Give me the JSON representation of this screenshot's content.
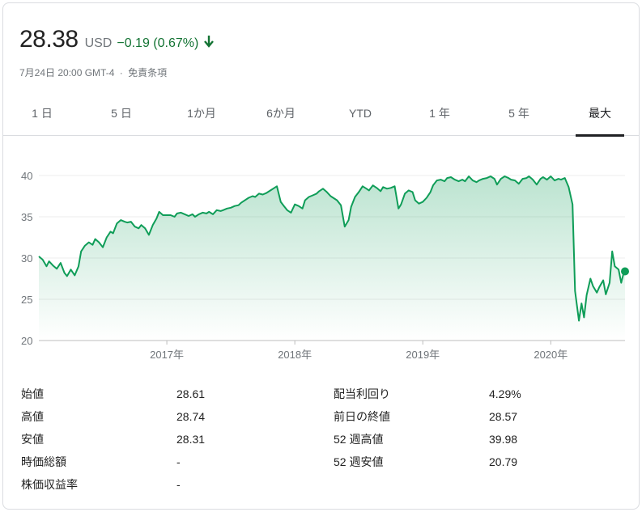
{
  "quote": {
    "price": "28.38",
    "currency": "USD",
    "change": "−0.19 (0.67%)",
    "change_color": "#137333",
    "direction_icon": "arrow-down-icon",
    "date": "7月24日 20:00 GMT-4",
    "separator": "·",
    "disclaimer": "免責条項"
  },
  "tabs": [
    {
      "label": "1 日"
    },
    {
      "label": "5 日"
    },
    {
      "label": "1か月"
    },
    {
      "label": "6か月"
    },
    {
      "label": "YTD"
    },
    {
      "label": "1 年"
    },
    {
      "label": "5 年"
    },
    {
      "label": "最大",
      "active": true
    }
  ],
  "chart_data": {
    "type": "area",
    "line_color": "#0f9d58",
    "ylim": [
      20,
      40
    ],
    "yticks": [
      "40",
      "35",
      "30",
      "25",
      "20"
    ],
    "xticks": [
      "2017年",
      "2018年",
      "2019年",
      "2020年"
    ],
    "grid": true,
    "x_start": 2016.0,
    "x_end": 2020.58,
    "series": [
      {
        "points": [
          [
            2016.0,
            30.2
          ],
          [
            2016.03,
            29.8
          ],
          [
            2016.06,
            29.0
          ],
          [
            2016.08,
            29.6
          ],
          [
            2016.11,
            29.1
          ],
          [
            2016.14,
            28.7
          ],
          [
            2016.17,
            29.4
          ],
          [
            2016.2,
            28.2
          ],
          [
            2016.22,
            27.8
          ],
          [
            2016.25,
            28.6
          ],
          [
            2016.28,
            27.9
          ],
          [
            2016.31,
            29.0
          ],
          [
            2016.33,
            30.8
          ],
          [
            2016.36,
            31.5
          ],
          [
            2016.39,
            31.9
          ],
          [
            2016.42,
            31.6
          ],
          [
            2016.44,
            32.3
          ],
          [
            2016.47,
            31.9
          ],
          [
            2016.5,
            31.3
          ],
          [
            2016.53,
            32.5
          ],
          [
            2016.56,
            33.2
          ],
          [
            2016.58,
            33.0
          ],
          [
            2016.61,
            34.2
          ],
          [
            2016.64,
            34.6
          ],
          [
            2016.67,
            34.4
          ],
          [
            2016.69,
            34.3
          ],
          [
            2016.72,
            34.4
          ],
          [
            2016.75,
            33.8
          ],
          [
            2016.78,
            33.6
          ],
          [
            2016.8,
            34.0
          ],
          [
            2016.83,
            33.6
          ],
          [
            2016.86,
            32.8
          ],
          [
            2016.89,
            34.0
          ],
          [
            2016.92,
            34.8
          ],
          [
            2016.94,
            35.6
          ],
          [
            2016.97,
            35.2
          ],
          [
            2017.0,
            35.2
          ],
          [
            2017.03,
            35.2
          ],
          [
            2017.06,
            35.0
          ],
          [
            2017.08,
            35.4
          ],
          [
            2017.11,
            35.5
          ],
          [
            2017.14,
            35.3
          ],
          [
            2017.17,
            35.1
          ],
          [
            2017.2,
            35.3
          ],
          [
            2017.22,
            35.0
          ],
          [
            2017.25,
            35.3
          ],
          [
            2017.28,
            35.5
          ],
          [
            2017.31,
            35.4
          ],
          [
            2017.33,
            35.6
          ],
          [
            2017.36,
            35.3
          ],
          [
            2017.39,
            35.8
          ],
          [
            2017.42,
            35.7
          ],
          [
            2017.44,
            35.8
          ],
          [
            2017.47,
            36.0
          ],
          [
            2017.5,
            36.1
          ],
          [
            2017.53,
            36.3
          ],
          [
            2017.56,
            36.4
          ],
          [
            2017.58,
            36.7
          ],
          [
            2017.61,
            37.0
          ],
          [
            2017.64,
            37.3
          ],
          [
            2017.67,
            37.5
          ],
          [
            2017.69,
            37.4
          ],
          [
            2017.72,
            37.8
          ],
          [
            2017.75,
            37.7
          ],
          [
            2017.78,
            37.9
          ],
          [
            2017.81,
            38.2
          ],
          [
            2017.83,
            38.4
          ],
          [
            2017.86,
            38.7
          ],
          [
            2017.89,
            36.8
          ],
          [
            2017.92,
            36.2
          ],
          [
            2017.94,
            35.8
          ],
          [
            2017.97,
            35.5
          ],
          [
            2018.0,
            36.5
          ],
          [
            2018.03,
            36.3
          ],
          [
            2018.06,
            36.0
          ],
          [
            2018.08,
            37.0
          ],
          [
            2018.11,
            37.4
          ],
          [
            2018.14,
            37.6
          ],
          [
            2018.17,
            37.8
          ],
          [
            2018.19,
            38.1
          ],
          [
            2018.22,
            38.4
          ],
          [
            2018.25,
            38.0
          ],
          [
            2018.28,
            37.5
          ],
          [
            2018.31,
            37.2
          ],
          [
            2018.33,
            37.0
          ],
          [
            2018.36,
            36.4
          ],
          [
            2018.39,
            33.8
          ],
          [
            2018.42,
            34.6
          ],
          [
            2018.44,
            36.2
          ],
          [
            2018.47,
            37.4
          ],
          [
            2018.5,
            38.0
          ],
          [
            2018.53,
            38.7
          ],
          [
            2018.56,
            38.4
          ],
          [
            2018.58,
            38.2
          ],
          [
            2018.61,
            38.8
          ],
          [
            2018.64,
            38.5
          ],
          [
            2018.67,
            38.1
          ],
          [
            2018.69,
            38.6
          ],
          [
            2018.72,
            38.4
          ],
          [
            2018.75,
            38.5
          ],
          [
            2018.78,
            38.7
          ],
          [
            2018.81,
            36.0
          ],
          [
            2018.83,
            36.5
          ],
          [
            2018.86,
            37.8
          ],
          [
            2018.89,
            38.2
          ],
          [
            2018.92,
            38.0
          ],
          [
            2018.94,
            37.0
          ],
          [
            2018.97,
            36.6
          ],
          [
            2019.0,
            36.8
          ],
          [
            2019.03,
            37.3
          ],
          [
            2019.06,
            38.0
          ],
          [
            2019.08,
            38.8
          ],
          [
            2019.11,
            39.4
          ],
          [
            2019.14,
            39.5
          ],
          [
            2019.17,
            39.3
          ],
          [
            2019.19,
            39.7
          ],
          [
            2019.22,
            39.8
          ],
          [
            2019.25,
            39.5
          ],
          [
            2019.28,
            39.3
          ],
          [
            2019.31,
            39.5
          ],
          [
            2019.33,
            39.3
          ],
          [
            2019.36,
            39.9
          ],
          [
            2019.39,
            39.4
          ],
          [
            2019.42,
            39.2
          ],
          [
            2019.44,
            39.4
          ],
          [
            2019.47,
            39.6
          ],
          [
            2019.5,
            39.7
          ],
          [
            2019.53,
            39.9
          ],
          [
            2019.56,
            39.6
          ],
          [
            2019.58,
            38.9
          ],
          [
            2019.61,
            39.6
          ],
          [
            2019.64,
            39.9
          ],
          [
            2019.67,
            39.7
          ],
          [
            2019.69,
            39.5
          ],
          [
            2019.72,
            39.4
          ],
          [
            2019.75,
            39.0
          ],
          [
            2019.78,
            39.6
          ],
          [
            2019.81,
            39.7
          ],
          [
            2019.83,
            39.9
          ],
          [
            2019.86,
            39.5
          ],
          [
            2019.89,
            38.9
          ],
          [
            2019.92,
            39.6
          ],
          [
            2019.94,
            39.8
          ],
          [
            2019.97,
            39.5
          ],
          [
            2020.0,
            39.9
          ],
          [
            2020.03,
            39.4
          ],
          [
            2020.06,
            39.6
          ],
          [
            2020.08,
            39.5
          ],
          [
            2020.11,
            39.7
          ],
          [
            2020.14,
            38.6
          ],
          [
            2020.17,
            36.5
          ],
          [
            2020.19,
            26.0
          ],
          [
            2020.22,
            22.4
          ],
          [
            2020.24,
            24.5
          ],
          [
            2020.26,
            22.8
          ],
          [
            2020.28,
            25.5
          ],
          [
            2020.31,
            27.5
          ],
          [
            2020.33,
            26.6
          ],
          [
            2020.36,
            25.8
          ],
          [
            2020.38,
            26.5
          ],
          [
            2020.41,
            27.3
          ],
          [
            2020.43,
            25.6
          ],
          [
            2020.46,
            27.0
          ],
          [
            2020.48,
            30.8
          ],
          [
            2020.5,
            29.0
          ],
          [
            2020.53,
            28.6
          ],
          [
            2020.55,
            27.0
          ],
          [
            2020.57,
            28.2
          ],
          [
            2020.58,
            28.38
          ]
        ]
      }
    ]
  },
  "stats": {
    "left": [
      {
        "label": "始値",
        "value": "28.61"
      },
      {
        "label": "高値",
        "value": "28.74"
      },
      {
        "label": "安値",
        "value": "28.31"
      },
      {
        "label": "時価総額",
        "value": "-"
      },
      {
        "label": "株価収益率",
        "value": "-"
      }
    ],
    "right": [
      {
        "label": "配当利回り",
        "value": "4.29%"
      },
      {
        "label": "前日の終値",
        "value": "28.57"
      },
      {
        "label": "52 週高値",
        "value": "39.98"
      },
      {
        "label": "52 週安値",
        "value": "20.79"
      }
    ]
  }
}
